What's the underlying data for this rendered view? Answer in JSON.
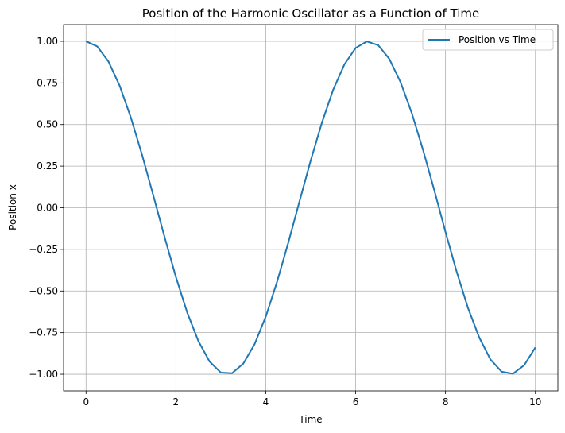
{
  "chart_data": {
    "type": "line",
    "title": "Position of the Harmonic Oscillator as a Function of Time",
    "xlabel": "Time",
    "ylabel": "Position x",
    "xlim": [
      -0.5,
      10.5
    ],
    "ylim": [
      -1.1,
      1.1
    ],
    "xticks": [
      0,
      2,
      4,
      6,
      8,
      10
    ],
    "xtick_labels": [
      "0",
      "2",
      "4",
      "6",
      "8",
      "10"
    ],
    "yticks": [
      1.0,
      0.75,
      0.5,
      0.25,
      0.0,
      -0.25,
      -0.5,
      -0.75,
      -1.0
    ],
    "ytick_labels": [
      "1.00",
      "0.75",
      "0.50",
      "0.25",
      "0.00",
      "−0.25",
      "−0.50",
      "−0.75",
      "−1.00"
    ],
    "grid": true,
    "legend": {
      "position": "top-right"
    },
    "series": [
      {
        "name": "Position vs Time",
        "color": "#1f77b4",
        "x": [
          0,
          0.25,
          0.5,
          0.75,
          1,
          1.25,
          1.5,
          1.75,
          2,
          2.25,
          2.5,
          2.75,
          3,
          3.25,
          3.5,
          3.75,
          4,
          4.25,
          4.5,
          4.75,
          5,
          5.25,
          5.5,
          5.75,
          6,
          6.25,
          6.5,
          6.75,
          7,
          7.25,
          7.5,
          7.75,
          8,
          8.25,
          8.5,
          8.75,
          9,
          9.25,
          9.5,
          9.75,
          10
        ],
        "y": [
          1.0,
          0.969,
          0.878,
          0.732,
          0.54,
          0.315,
          0.071,
          -0.178,
          -0.416,
          -0.628,
          -0.801,
          -0.924,
          -0.99,
          -0.994,
          -0.936,
          -0.82,
          -0.654,
          -0.446,
          -0.211,
          0.038,
          0.284,
          0.512,
          0.709,
          0.861,
          0.96,
          0.999,
          0.977,
          0.894,
          0.754,
          0.568,
          0.347,
          0.105,
          -0.146,
          -0.386,
          -0.602,
          -0.779,
          -0.911,
          -0.985,
          -0.997,
          -0.946,
          -0.839
        ]
      }
    ]
  }
}
